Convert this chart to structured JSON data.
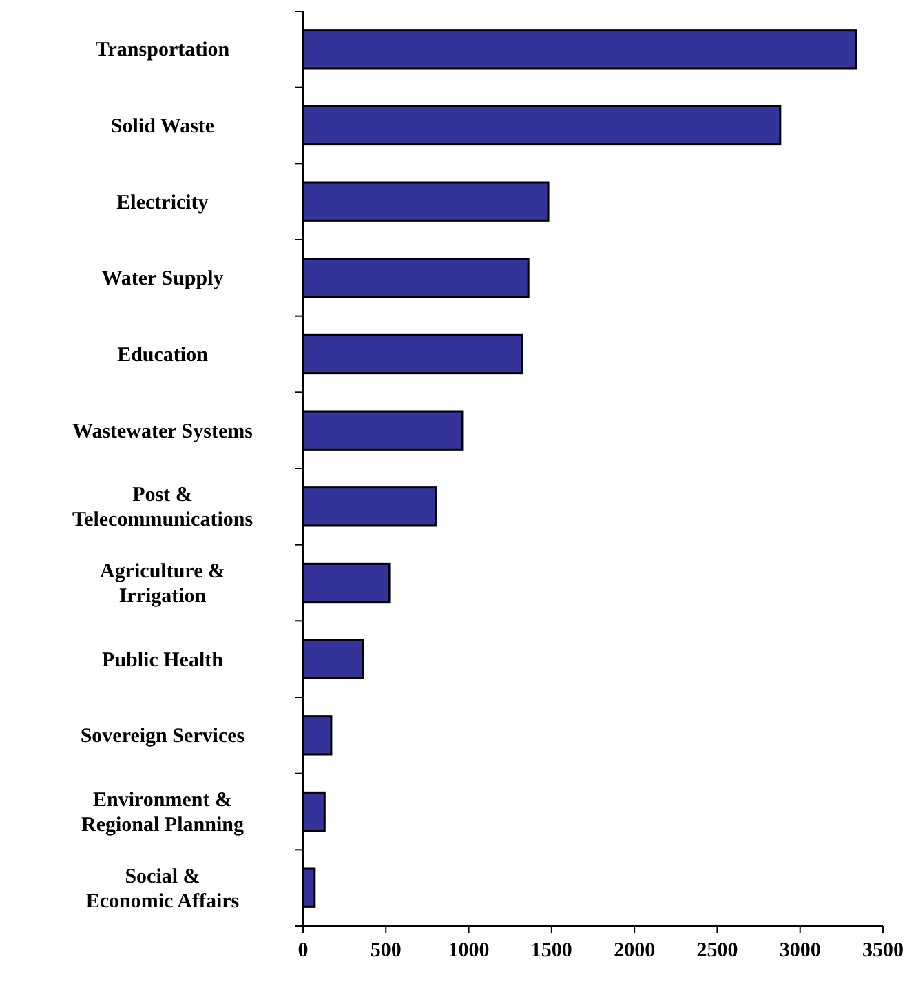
{
  "chart_data": {
    "type": "bar",
    "orientation": "horizontal",
    "categories": [
      "Transportation",
      "Solid Waste",
      "Electricity",
      "Water Supply",
      "Education",
      "Wastewater Systems",
      "Post &\nTelecommunications",
      "Agriculture &\nIrrigation",
      "Public Health",
      "Sovereign Services",
      "Environment &\nRegional Planning",
      "Social &\nEconomic Affairs"
    ],
    "values": [
      3340,
      2880,
      1480,
      1360,
      1320,
      960,
      800,
      520,
      360,
      170,
      130,
      70
    ],
    "color": "#333399",
    "xlim": [
      0,
      3500
    ],
    "xticks": [
      0,
      500,
      1000,
      1500,
      2000,
      2500,
      3000,
      3500
    ],
    "grid": false
  }
}
